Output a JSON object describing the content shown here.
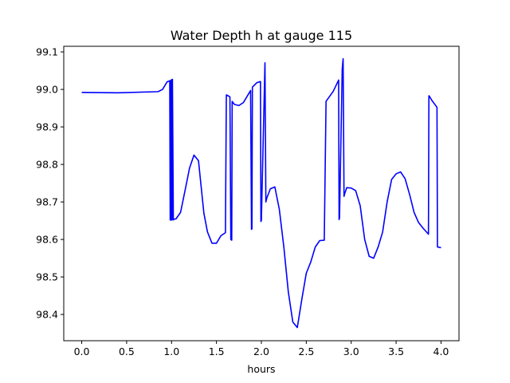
{
  "chart_data": {
    "type": "line",
    "title": "Water Depth h at gauge 115",
    "xlabel": "hours",
    "ylabel": "",
    "xlim": [
      -0.2,
      4.2
    ],
    "ylim": [
      98.33,
      99.115
    ],
    "grid": false,
    "line_color": "#0000ff",
    "x_ticks": [
      0.0,
      0.5,
      1.0,
      1.5,
      2.0,
      2.5,
      3.0,
      3.5,
      4.0
    ],
    "x_tick_labels": [
      "0.0",
      "0.5",
      "1.0",
      "1.5",
      "2.0",
      "2.5",
      "3.0",
      "3.5",
      "4.0"
    ],
    "y_ticks": [
      98.4,
      98.5,
      98.6,
      98.7,
      98.8,
      98.9,
      99.0,
      99.1
    ],
    "y_tick_labels": [
      "98.4",
      "98.5",
      "98.6",
      "98.7",
      "98.8",
      "98.9",
      "99.0",
      "99.1"
    ],
    "series": [
      {
        "x": [
          0.0,
          0.4,
          0.85,
          0.9,
          0.95,
          0.98,
          0.985,
          0.99,
          0.995,
          1.0,
          1.005,
          1.01,
          1.02,
          1.025,
          1.03,
          1.05,
          1.1,
          1.15,
          1.2,
          1.25,
          1.3,
          1.33,
          1.36,
          1.4,
          1.45,
          1.5,
          1.55,
          1.6,
          1.61,
          1.615,
          1.65,
          1.66,
          1.67,
          1.675,
          1.7,
          1.75,
          1.8,
          1.88,
          1.89,
          1.895,
          1.9,
          1.95,
          1.99,
          1.995,
          2.0,
          2.04,
          2.05,
          2.06,
          2.1,
          2.15,
          2.2,
          2.25,
          2.3,
          2.35,
          2.4,
          2.45,
          2.5,
          2.55,
          2.6,
          2.65,
          2.7,
          2.72,
          2.725,
          2.8,
          2.86,
          2.865,
          2.87,
          2.9,
          2.91,
          2.92,
          2.925,
          2.95,
          3.0,
          3.05,
          3.1,
          3.15,
          3.2,
          3.25,
          3.3,
          3.35,
          3.4,
          3.45,
          3.5,
          3.55,
          3.6,
          3.65,
          3.7,
          3.75,
          3.8,
          3.86,
          3.865,
          3.87,
          3.9,
          3.95,
          3.955,
          3.96,
          4.0
        ],
        "values": [
          98.992,
          98.991,
          98.994,
          99.0,
          99.02,
          99.023,
          98.652,
          99.024,
          98.652,
          99.026,
          98.652,
          99.027,
          98.652,
          98.654,
          98.654,
          98.655,
          98.672,
          98.73,
          98.79,
          98.825,
          98.81,
          98.74,
          98.67,
          98.62,
          98.59,
          98.59,
          98.61,
          98.618,
          98.985,
          98.985,
          98.98,
          98.6,
          98.598,
          98.968,
          98.96,
          98.957,
          98.965,
          98.997,
          98.627,
          98.628,
          99.006,
          99.018,
          99.021,
          98.648,
          98.651,
          99.071,
          98.7,
          98.71,
          98.735,
          98.74,
          98.68,
          98.58,
          98.46,
          98.38,
          98.365,
          98.44,
          98.51,
          98.54,
          98.58,
          98.597,
          98.598,
          98.968,
          98.97,
          98.995,
          99.025,
          98.653,
          98.658,
          99.054,
          99.082,
          98.715,
          98.72,
          98.738,
          98.737,
          98.73,
          98.69,
          98.6,
          98.555,
          98.55,
          98.58,
          98.62,
          98.7,
          98.76,
          98.775,
          98.78,
          98.762,
          98.72,
          98.672,
          98.645,
          98.63,
          98.614,
          98.983,
          98.982,
          98.97,
          98.954,
          98.952,
          98.58,
          98.578
        ]
      }
    ]
  }
}
